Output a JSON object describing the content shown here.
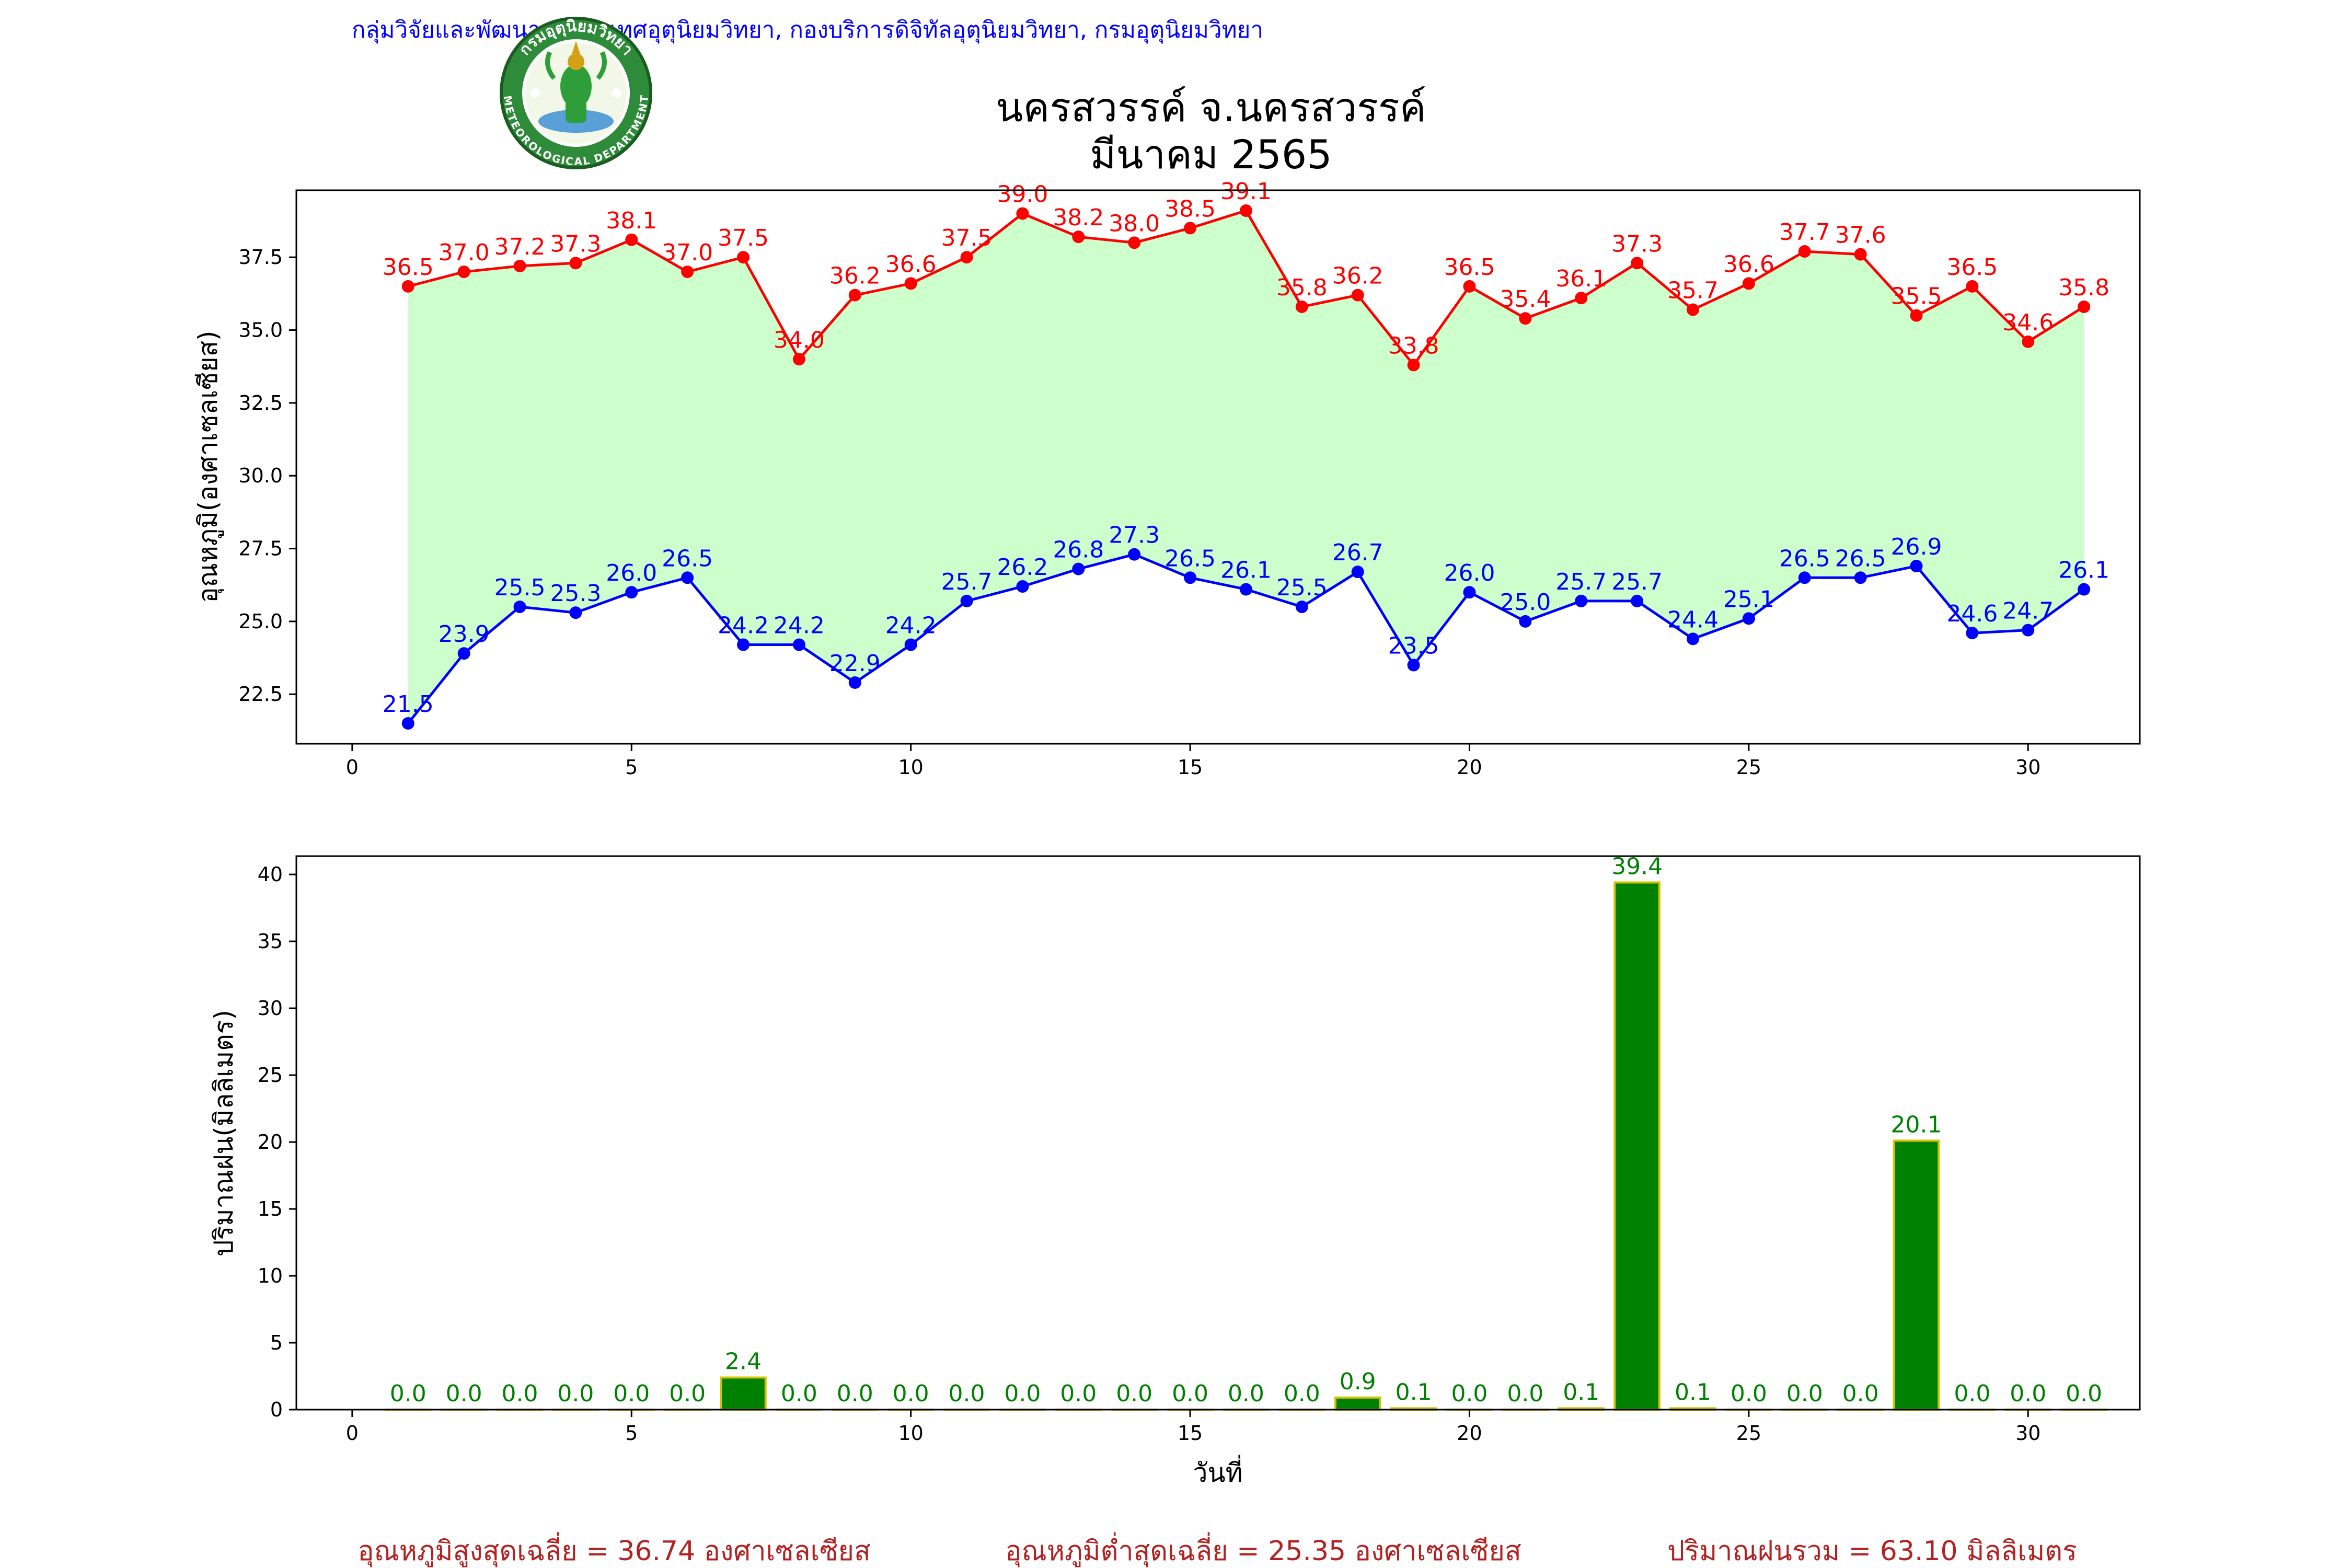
{
  "header": {
    "credit": "กลุ่มวิจัยและพัฒนาสารสนเทศอุตุนิยมวิทยา, กองบริการดิจิทัลอุตุนิยมวิทยา, กรมอุตุนิยมวิทยา",
    "title_line1": "นครสวรรค์  จ.นครสวรรค์",
    "title_line2": "มีนาคม 2565",
    "logo_text_top": "กรมอุตุนิยมวิทยา",
    "logo_text_bottom": "METEOROLOGICAL DEPARTMENT"
  },
  "colors": {
    "max_line": "#ff0000",
    "min_line": "#0000ff",
    "fill": "#ccffcc",
    "rain_bar": "#008000",
    "rain_edge": "#d4c200",
    "rain_label": "#008000",
    "summary": "#b22222",
    "credit": "#0000ff"
  },
  "chart_data": [
    {
      "type": "line",
      "ylabel": "อุณหภูมิ(องศาเซลเซียส)",
      "xlim": [
        -1,
        32
      ],
      "ylim": [
        20.8,
        39.8
      ],
      "xticks": [
        0,
        5,
        10,
        15,
        20,
        25,
        30
      ],
      "yticks": [
        22.5,
        25.0,
        27.5,
        30.0,
        32.5,
        35.0,
        37.5
      ],
      "x": [
        1,
        2,
        3,
        4,
        5,
        6,
        7,
        8,
        9,
        10,
        11,
        12,
        13,
        14,
        15,
        16,
        17,
        18,
        19,
        20,
        21,
        22,
        23,
        24,
        25,
        26,
        27,
        28,
        29,
        30,
        31
      ],
      "series": [
        {
          "name": "max",
          "values": [
            36.5,
            37.0,
            37.2,
            37.3,
            38.1,
            37.0,
            37.5,
            34.0,
            36.2,
            36.6,
            37.5,
            39.0,
            38.2,
            38.0,
            38.5,
            39.1,
            35.8,
            36.2,
            33.8,
            36.5,
            35.4,
            36.1,
            37.3,
            35.7,
            36.6,
            37.7,
            37.6,
            35.5,
            36.5,
            34.6,
            35.8
          ]
        },
        {
          "name": "min",
          "values": [
            21.5,
            23.9,
            25.5,
            25.3,
            26.0,
            26.5,
            24.2,
            24.2,
            22.9,
            24.2,
            25.7,
            26.2,
            26.8,
            27.3,
            26.5,
            26.1,
            25.5,
            26.7,
            23.5,
            26.0,
            25.0,
            25.7,
            25.7,
            24.4,
            25.1,
            26.5,
            26.5,
            26.9,
            24.6,
            24.7,
            26.1
          ]
        }
      ]
    },
    {
      "type": "bar",
      "xlabel": "วันที่",
      "ylabel": "ปริมาณฝน(มิลลิเมตร)",
      "xlim": [
        -1,
        32
      ],
      "ylim": [
        0,
        41.37
      ],
      "xticks": [
        0,
        5,
        10,
        15,
        20,
        25,
        30
      ],
      "yticks": [
        0,
        5,
        10,
        15,
        20,
        25,
        30,
        35,
        40
      ],
      "x": [
        1,
        2,
        3,
        4,
        5,
        6,
        7,
        8,
        9,
        10,
        11,
        12,
        13,
        14,
        15,
        16,
        17,
        18,
        19,
        20,
        21,
        22,
        23,
        24,
        25,
        26,
        27,
        28,
        29,
        30,
        31
      ],
      "values": [
        0.0,
        0.0,
        0.0,
        0.0,
        0.0,
        0.0,
        2.4,
        0.0,
        0.0,
        0.0,
        0.0,
        0.0,
        0.0,
        0.0,
        0.0,
        0.0,
        0.0,
        0.9,
        0.1,
        0.0,
        0.0,
        0.1,
        39.4,
        0.1,
        0.0,
        0.0,
        0.0,
        20.1,
        0.0,
        0.0,
        0.0
      ]
    }
  ],
  "summary": {
    "avg_max": "อุณหภูมิสูงสุดเฉลี่ย = 36.74 องศาเซลเซียส",
    "avg_min": "อุณหภูมิต่ำสุดเฉลี่ย = 25.35 องศาเซลเซียส",
    "total_rain": "ปริมาณฝนรวม = 63.10 มิลลิเมตร"
  }
}
